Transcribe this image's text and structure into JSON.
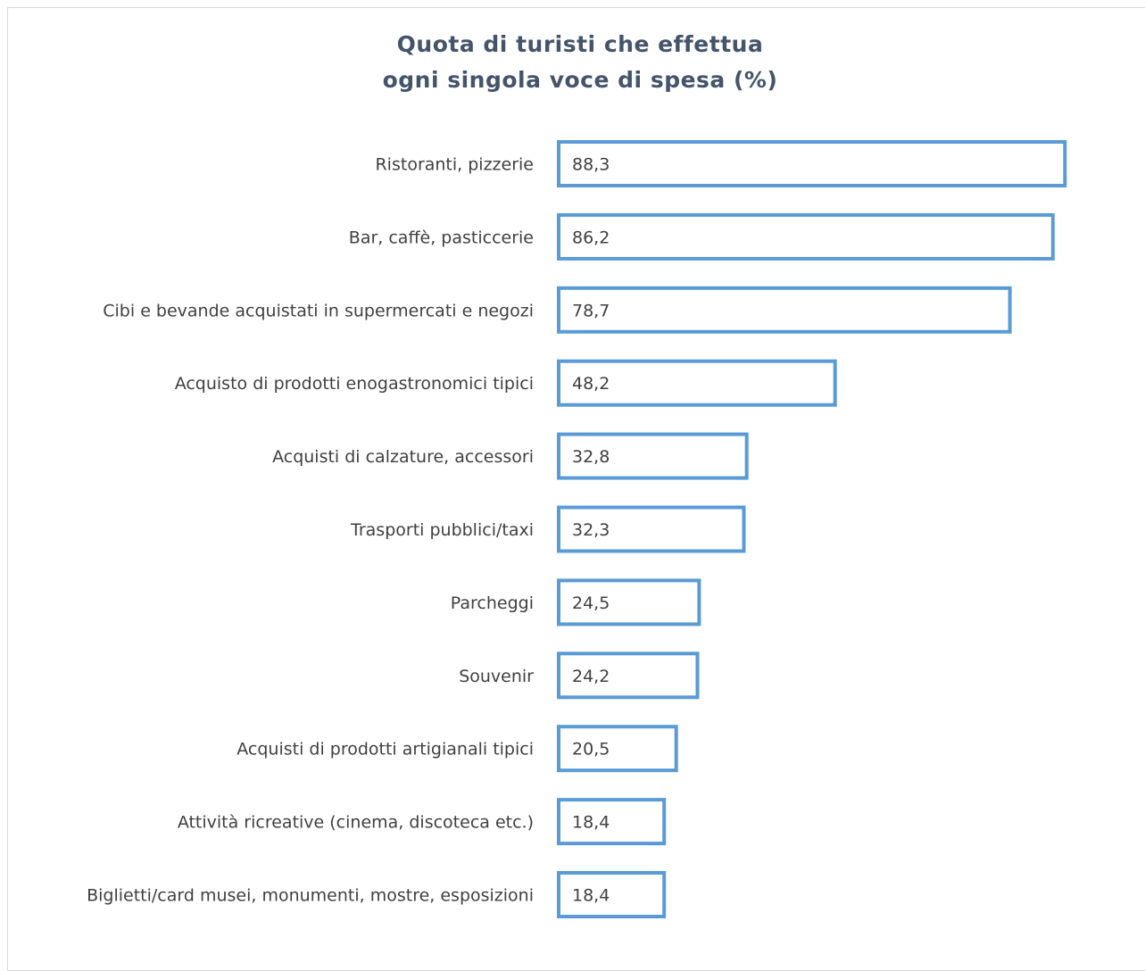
{
  "chart_data": {
    "type": "bar",
    "orientation": "horizontal",
    "title_lines": [
      "Quota di turisti che effettua",
      "ogni singola voce di spesa (%)"
    ],
    "categories": [
      "Ristoranti, pizzerie",
      "Bar, caffè, pasticcerie",
      "Cibi e bevande acquistati in supermercati e negozi",
      "Acquisto di prodotti enogastronomici tipici",
      "Acquisti di calzature, accessori",
      "Trasporti pubblici/taxi",
      "Parcheggi",
      "Souvenir",
      "Acquisti di prodotti artigianali tipici",
      "Attività ricreative (cinema, discoteca etc.)",
      "Biglietti/card musei, monumenti, mostre, esposizioni"
    ],
    "values": [
      88.3,
      86.2,
      78.7,
      48.2,
      32.8,
      32.3,
      24.5,
      24.2,
      20.5,
      18.4,
      18.4
    ],
    "value_labels": [
      "88,3",
      "86,2",
      "78,7",
      "48,2",
      "32,8",
      "32,3",
      "24,5",
      "24,2",
      "20,5",
      "18,4",
      "18,4"
    ],
    "xlim": [
      0,
      100
    ],
    "bar_fill": "#ffffff",
    "bar_stroke": "#5b9bd5",
    "grid": false,
    "legend": "none",
    "axes_visible": false
  }
}
